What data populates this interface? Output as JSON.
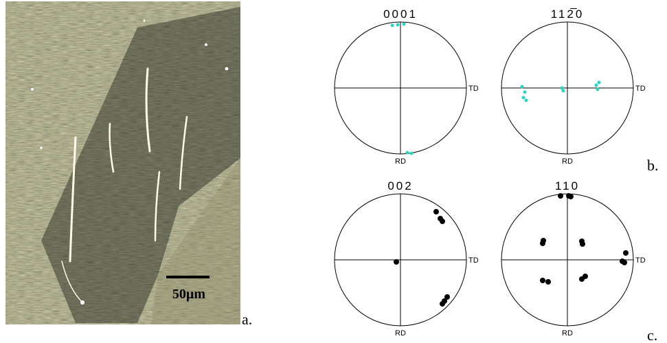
{
  "figure": {
    "panel_a": {
      "scale_bar": "50µm",
      "label": "a."
    },
    "panel_b": {
      "label": "b.",
      "pole_figures": [
        {
          "title": "0001",
          "x_axis": "TD",
          "y_axis": "RD"
        },
        {
          "title": "112̅0",
          "x_axis": "TD",
          "y_axis": "RD"
        }
      ]
    },
    "panel_c": {
      "label": "c.",
      "pole_figures": [
        {
          "title": "002",
          "x_axis": "TD",
          "y_axis": "RD"
        },
        {
          "title": "110",
          "x_axis": "TD",
          "y_axis": "RD"
        }
      ]
    }
  }
}
